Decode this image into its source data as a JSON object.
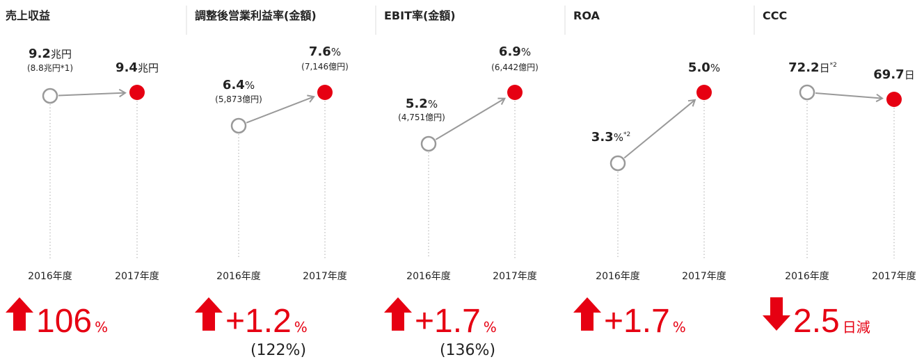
{
  "panels": [
    {
      "title": "売上収益",
      "start": {
        "value": "9.2",
        "unit": "兆円",
        "sub": "(8.8兆円*1)"
      },
      "end": {
        "value": "9.4",
        "unit": "兆円"
      },
      "years": [
        "2016年度",
        "2017年度"
      ],
      "change": {
        "direction": "up",
        "value": "106",
        "unit": "%"
      }
    },
    {
      "title": "調整後営業利益率(金額)",
      "start": {
        "value": "6.4",
        "unit": "%",
        "sub": "(5,873億円)"
      },
      "end": {
        "value": "7.6",
        "unit": "%",
        "sub": "(7,146億円)"
      },
      "years": [
        "2016年度",
        "2017年度"
      ],
      "change": {
        "direction": "up",
        "value": "+1.2",
        "unit": "%",
        "sub": "(122%)"
      }
    },
    {
      "title": "EBIT率(金額)",
      "start": {
        "value": "5.2",
        "unit": "%",
        "sub": "(4,751億円)"
      },
      "end": {
        "value": "6.9",
        "unit": "%",
        "sub": "(6,442億円)"
      },
      "years": [
        "2016年度",
        "2017年度"
      ],
      "change": {
        "direction": "up",
        "value": "+1.7",
        "unit": "%",
        "sub": "(136%)"
      }
    },
    {
      "title": "ROA",
      "start": {
        "value": "3.3",
        "unit": "%",
        "note": "*2"
      },
      "end": {
        "value": "5.0",
        "unit": "%"
      },
      "years": [
        "2016年度",
        "2017年度"
      ],
      "change": {
        "direction": "up",
        "value": "+1.7",
        "unit": "%"
      }
    },
    {
      "title": "CCC",
      "start": {
        "value": "72.2",
        "unit": "日",
        "note": "*2"
      },
      "end": {
        "value": "69.7",
        "unit": "日"
      },
      "years": [
        "2016年度",
        "2017年度"
      ],
      "change": {
        "direction": "down",
        "value": "2.5",
        "unit": "日減"
      }
    }
  ]
}
